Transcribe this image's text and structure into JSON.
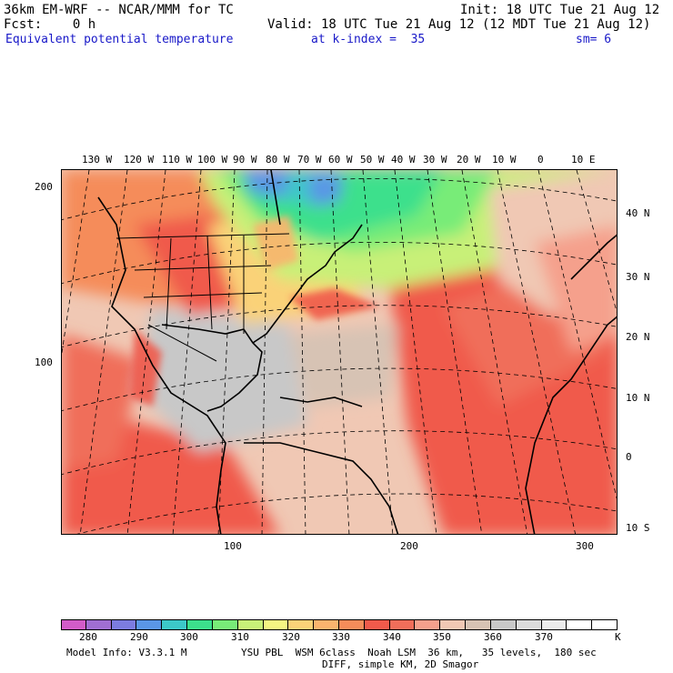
{
  "header": {
    "model_line": "36km EM-WRF -- NCAR/MMM for TC",
    "init_line": "Init: 18 UTC Tue 21 Aug 12",
    "fcst_line": "Fcst:    0 h",
    "valid_line": "Valid: 18 UTC Tue 21 Aug 12 (12 MDT Tue 21 Aug 12)",
    "field_line": "Equivalent potential temperature",
    "level_line": "at k-index =  35",
    "smooth_line": "sm= 6"
  },
  "map": {
    "longitude_labels": [
      "130 W",
      "120 W",
      "110 W",
      "100 W",
      "90 W",
      "80 W",
      "70 W",
      "60 W",
      "50 W",
      "40 W",
      "30 W",
      "20 W",
      "10 W",
      "0",
      "10 E"
    ],
    "latitude_labels": [
      "40 N",
      "30 N",
      "20 N",
      "10 N",
      "0",
      "10 S"
    ],
    "grid_x_labels": [
      "100",
      "200",
      "300"
    ],
    "grid_y_labels": [
      "200",
      "100"
    ]
  },
  "colorbar": {
    "ticks": [
      "280",
      "290",
      "300",
      "310",
      "320",
      "330",
      "340",
      "350",
      "360",
      "370"
    ],
    "unit": "K",
    "colors": [
      "#d25cc8",
      "#a06ed2",
      "#7c7ce0",
      "#5a96e6",
      "#3cc8c8",
      "#3ce08c",
      "#78ec78",
      "#c8f078",
      "#f5f582",
      "#fad278",
      "#fab46e",
      "#f58c5a",
      "#f05a4b",
      "#f06e5a",
      "#f5a08c",
      "#f0c8b4",
      "#d7c3b4",
      "#c8c8c8",
      "#dcdcdc",
      "#ececec",
      "#ffffff",
      "#ffffff"
    ]
  },
  "footer": {
    "model_info": "Model Info: V3.3.1 M",
    "physics_line": "YSU PBL  WSM 6class  Noah LSM  36 km,   35 levels,  180 sec",
    "diff_line": "DIFF, simple KM, 2D Smagor"
  }
}
